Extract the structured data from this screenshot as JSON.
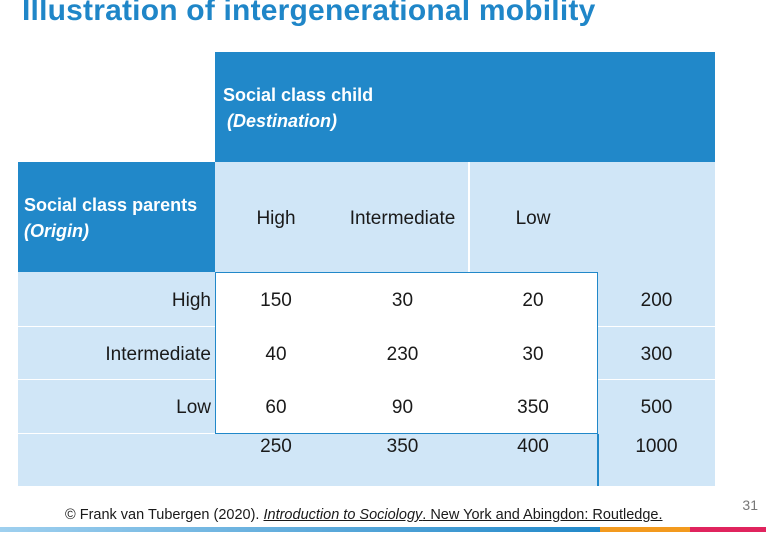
{
  "title": "Illustration of intergenerational mobility",
  "table": {
    "dest_header": "Social class child",
    "dest_sub": "(Destination)",
    "origin_header": "Social class parents",
    "origin_sub": "(Origin)",
    "col_labels": [
      "High",
      "Intermediate",
      "Low"
    ],
    "rows": [
      {
        "label": "High",
        "values": [
          "150",
          "30",
          "20"
        ],
        "total": "200"
      },
      {
        "label": "Intermediate",
        "values": [
          "40",
          "230",
          "30"
        ],
        "total": "300"
      },
      {
        "label": "Low",
        "values": [
          "60",
          "90",
          "350"
        ],
        "total": "500"
      }
    ],
    "col_totals": [
      "250",
      "350",
      "400"
    ],
    "grand_total": "1000"
  },
  "footer": {
    "prefix": "© Frank van Tubergen (2020). ",
    "book": "Introduction to Sociology",
    "rest": ". New York and Abingdon: Routledge."
  },
  "page_number": "31",
  "colors": {
    "accent": "#2188c9",
    "light": "#d0e6f7",
    "bar_orange": "#f39a1e",
    "bar_red": "#e0245e"
  }
}
